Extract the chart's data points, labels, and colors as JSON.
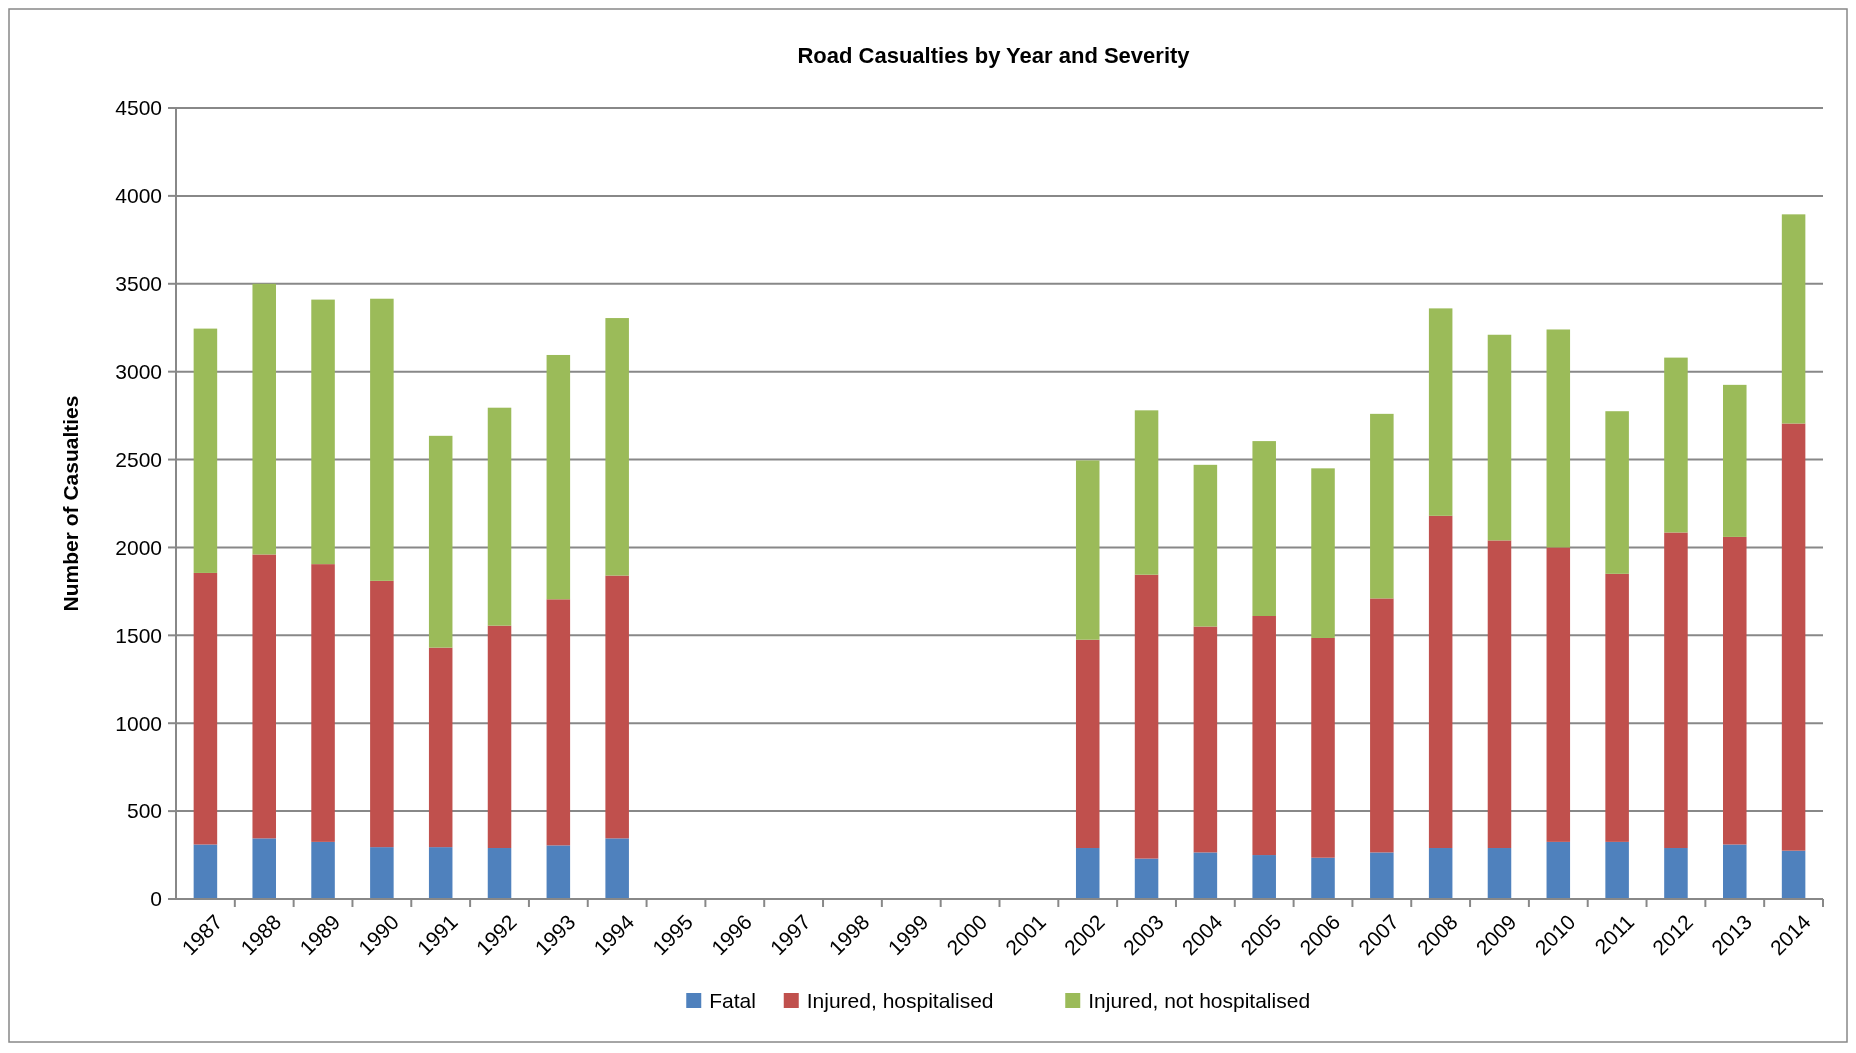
{
  "chart_data": {
    "type": "bar",
    "title": "Road Casualties by Year and Severity",
    "ylabel": "Number of Casualties",
    "categories": [
      "1987",
      "1988",
      "1989",
      "1990",
      "1991",
      "1992",
      "1993",
      "1994",
      "1995",
      "1996",
      "1997",
      "1998",
      "1999",
      "2000",
      "2001",
      "2002",
      "2003",
      "2004",
      "2005",
      "2006",
      "2007",
      "2008",
      "2009",
      "2010",
      "2011",
      "2012",
      "2013",
      "2014"
    ],
    "stacked": true,
    "series": [
      {
        "name": "Fatal",
        "color": "#4f81bd",
        "values": [
          310,
          345,
          325,
          295,
          295,
          290,
          305,
          345,
          null,
          null,
          null,
          null,
          null,
          null,
          null,
          290,
          230,
          265,
          250,
          235,
          265,
          290,
          290,
          325,
          325,
          290,
          310,
          275
        ]
      },
      {
        "name": "Injured, hospitalised",
        "color": "#c0504d",
        "values": [
          1545,
          1615,
          1580,
          1515,
          1135,
          1265,
          1400,
          1495,
          null,
          null,
          null,
          null,
          null,
          null,
          null,
          1185,
          1615,
          1285,
          1360,
          1250,
          1445,
          1890,
          1750,
          1675,
          1525,
          1795,
          1750,
          2430
        ]
      },
      {
        "name": "Injured, not hospitalised",
        "color": "#9bbb59",
        "values": [
          1390,
          1540,
          1505,
          1605,
          1205,
          1240,
          1390,
          1465,
          null,
          null,
          null,
          null,
          null,
          null,
          null,
          1020,
          935,
          920,
          995,
          965,
          1050,
          1180,
          1170,
          1240,
          925,
          995,
          865,
          1190
        ]
      }
    ],
    "ylim": [
      0,
      4500
    ],
    "yticks": [
      0,
      500,
      1000,
      1500,
      2000,
      2500,
      3000,
      3500,
      4000,
      4500
    ],
    "grid": "y",
    "legend": "bottom"
  }
}
